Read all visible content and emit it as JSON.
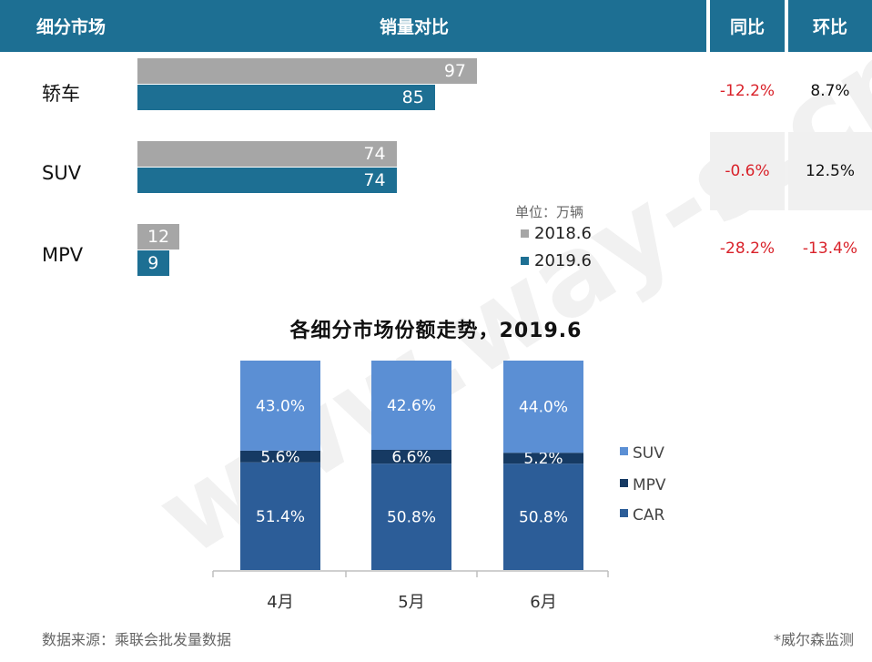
{
  "header": {
    "market_label": "细分市场",
    "compare_label": "销量对比",
    "yoy_label": "同比",
    "mom_label": "环比"
  },
  "comparison": {
    "unit": "单位：万辆",
    "legend": [
      {
        "label": "2018.6",
        "color": "#a6a6a6"
      },
      {
        "label": "2019.6",
        "color": "#1d6f93"
      }
    ],
    "rows": [
      {
        "label": "轿车",
        "v2018": "97",
        "v2019": "85",
        "yoy": "-12.2%",
        "mom": "8.7%"
      },
      {
        "label": "SUV",
        "v2018": "74",
        "v2019": "74",
        "yoy": "-0.6%",
        "mom": "12.5%"
      },
      {
        "label": "MPV",
        "v2018": "12",
        "v2019": "9",
        "yoy": "-28.2%",
        "mom": "-13.4%"
      }
    ]
  },
  "chart_data": {
    "type": "bar",
    "stacked": true,
    "title": "各细分市场份额走势，2019.6",
    "categories": [
      "4月",
      "5月",
      "6月"
    ],
    "series": [
      {
        "name": "CAR",
        "values": [
          51.4,
          50.8,
          50.8
        ],
        "labels": [
          "51.4%",
          "50.8%",
          "50.8%"
        ],
        "color": "#2c5d98"
      },
      {
        "name": "MPV",
        "values": [
          5.6,
          6.6,
          5.2
        ],
        "labels": [
          "5.6%",
          "6.6%",
          "5.2%"
        ],
        "color": "#163a63"
      },
      {
        "name": "SUV",
        "values": [
          43.0,
          42.6,
          44.0
        ],
        "labels": [
          "43.0%",
          "42.6%",
          "44.0%"
        ],
        "color": "#5b8fd4"
      }
    ],
    "legend_order": [
      "SUV",
      "MPV",
      "CAR"
    ],
    "ylim": [
      0,
      100
    ]
  },
  "footer": {
    "source": "数据来源：乘联会批发量数据",
    "credit": "*威尔森监测"
  },
  "watermark": "www.way-s.cn"
}
